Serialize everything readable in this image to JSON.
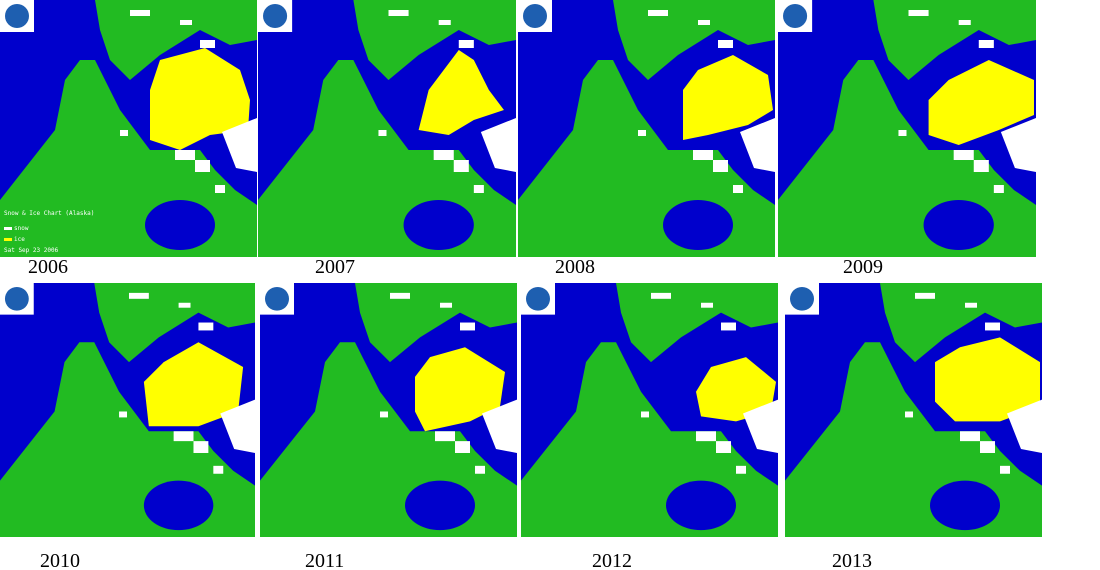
{
  "panels": [
    {
      "year": "2006",
      "legend": {
        "title": "Snow & Ice Chart (Alaska)",
        "snow": "snow",
        "ice": "ice",
        "date": "Sat Sep 23 2006"
      }
    },
    {
      "year": "2007"
    },
    {
      "year": "2008"
    },
    {
      "year": "2009"
    },
    {
      "year": "2010"
    },
    {
      "year": "2011"
    },
    {
      "year": "2012"
    },
    {
      "year": "2013"
    }
  ]
}
